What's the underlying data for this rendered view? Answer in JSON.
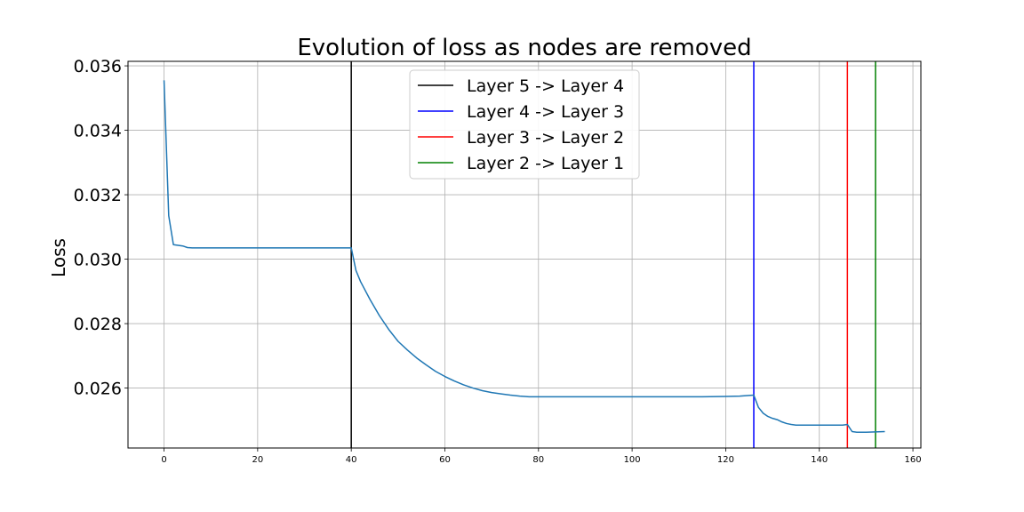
{
  "chart_data": {
    "type": "line",
    "title": "Evolution of loss as nodes are removed",
    "xlabel": "",
    "ylabel": "Loss",
    "xlim": [
      -7.7,
      161.7
    ],
    "ylim": [
      0.02414,
      0.03614
    ],
    "xticks": [
      0,
      20,
      40,
      60,
      80,
      100,
      120,
      140,
      160
    ],
    "yticks": [
      0.026,
      0.028,
      0.03,
      0.032,
      0.034,
      0.036
    ],
    "ytick_labels": [
      "0.026",
      "0.028",
      "0.030",
      "0.032",
      "0.034",
      "0.036"
    ],
    "grid": true,
    "legend_position": "upper center",
    "series": [
      {
        "color": "#1f77b4",
        "x": [
          0,
          1,
          2,
          3,
          4,
          5,
          6,
          8,
          10,
          15,
          20,
          25,
          30,
          35,
          39,
          40,
          41,
          42,
          44,
          46,
          48,
          50,
          52,
          54,
          56,
          58,
          60,
          62,
          64,
          66,
          68,
          70,
          72,
          74,
          76,
          78,
          80,
          85,
          90,
          100,
          110,
          115,
          120,
          123,
          126,
          127,
          128,
          129,
          130,
          131,
          132,
          133,
          134,
          135,
          136,
          138,
          140,
          142,
          144,
          145,
          146,
          147,
          148,
          150,
          152,
          154
        ],
        "y": [
          0.03555,
          0.03135,
          0.03045,
          0.03043,
          0.03041,
          0.03036,
          0.03035,
          0.03035,
          0.03035,
          0.03035,
          0.03035,
          0.03035,
          0.03035,
          0.03035,
          0.03035,
          0.03035,
          0.02965,
          0.0293,
          0.02875,
          0.02825,
          0.02782,
          0.02745,
          0.02718,
          0.02693,
          0.02672,
          0.02652,
          0.02636,
          0.02622,
          0.0261,
          0.026,
          0.02592,
          0.02586,
          0.02582,
          0.02578,
          0.02575,
          0.02573,
          0.02573,
          0.02573,
          0.02573,
          0.02573,
          0.02573,
          0.02573,
          0.02574,
          0.02575,
          0.02578,
          0.0254,
          0.02522,
          0.02512,
          0.02506,
          0.02502,
          0.02495,
          0.0249,
          0.02487,
          0.02485,
          0.02485,
          0.02485,
          0.02485,
          0.02485,
          0.02485,
          0.02485,
          0.02487,
          0.02465,
          0.02463,
          0.02463,
          0.02464,
          0.02465
        ]
      }
    ],
    "vlines": [
      {
        "name": "Layer 5 -> Layer 4",
        "x": 40,
        "color": "#000000"
      },
      {
        "name": "Layer 4 -> Layer 3",
        "x": 126,
        "color": "#0000ff"
      },
      {
        "name": "Layer 3 -> Layer 2",
        "x": 146,
        "color": "#ff0000"
      },
      {
        "name": "Layer 2 -> Layer 1",
        "x": 152,
        "color": "#008000"
      }
    ]
  }
}
